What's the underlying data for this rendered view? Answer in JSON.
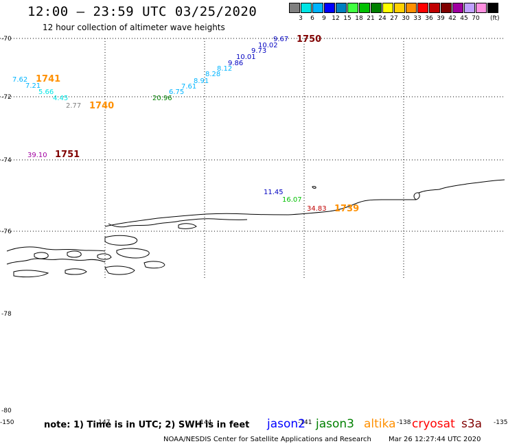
{
  "header": {
    "title": "12:00 – 23:59 UTC 03/25/2020",
    "subtitle": "12 hour collection of altimeter wave heights"
  },
  "color_scale": {
    "unit": "(ft)",
    "items": [
      {
        "label": "",
        "color": "#808080"
      },
      {
        "label": "3",
        "color": "#00e5e5"
      },
      {
        "label": "6",
        "color": "#00b4ff"
      },
      {
        "label": "9",
        "color": "#0000ff"
      },
      {
        "label": "12",
        "color": "#0080c0"
      },
      {
        "label": "15",
        "color": "#40ff40"
      },
      {
        "label": "18",
        "color": "#00c000"
      },
      {
        "label": "21",
        "color": "#008000"
      },
      {
        "label": "24",
        "color": "#ffff00"
      },
      {
        "label": "27",
        "color": "#ffd000"
      },
      {
        "label": "30",
        "color": "#ff9000"
      },
      {
        "label": "33",
        "color": "#ff0000"
      },
      {
        "label": "36",
        "color": "#c00000"
      },
      {
        "label": "39",
        "color": "#800000"
      },
      {
        "label": "42",
        "color": "#a000a0"
      },
      {
        "label": "45",
        "color": "#c0a0ff"
      },
      {
        "label": "70",
        "color": "#ff90e0"
      },
      {
        "label": "",
        "color": "#000000"
      }
    ]
  },
  "axes": {
    "lat_labels": [
      "-70",
      "-72",
      "-74",
      "-76",
      "-78",
      "-80"
    ],
    "lon_labels": [
      "-150",
      "-147",
      "-144",
      "-141",
      "-138",
      "-135"
    ]
  },
  "observations": [
    {
      "text": "9.67",
      "color": "#0000c0"
    },
    {
      "text": "10.02",
      "color": "#0000c0"
    },
    {
      "text": "9.73",
      "color": "#0000c0"
    },
    {
      "text": "10.01",
      "color": "#0000c0"
    },
    {
      "text": "9.86",
      "color": "#0000c0"
    },
    {
      "text": "8.12",
      "color": "#00b4ff"
    },
    {
      "text": "8.28",
      "color": "#00b4ff"
    },
    {
      "text": "8.91",
      "color": "#00b4ff"
    },
    {
      "text": "7.61",
      "color": "#00b4ff"
    },
    {
      "text": "6.75",
      "color": "#00b4ff"
    },
    {
      "text": "20.96",
      "color": "#008000"
    },
    {
      "text": "7.62",
      "color": "#00b4ff"
    },
    {
      "text": "7.21",
      "color": "#00b4ff"
    },
    {
      "text": "5.66",
      "color": "#00e5e5"
    },
    {
      "text": "4.45",
      "color": "#00e5e5"
    },
    {
      "text": "2.77",
      "color": "#808080"
    },
    {
      "text": "39.10",
      "color": "#a000a0"
    },
    {
      "text": "11.45",
      "color": "#0000c0"
    },
    {
      "text": "16.07",
      "color": "#00c000"
    },
    {
      "text": "34.83",
      "color": "#c00000"
    }
  ],
  "time_labels": [
    {
      "text": "1750",
      "color": "#800000"
    },
    {
      "text": "1741",
      "color": "#ff9000"
    },
    {
      "text": "1740",
      "color": "#ff9000"
    },
    {
      "text": "1751",
      "color": "#800000"
    },
    {
      "text": "1739",
      "color": "#ff9000"
    }
  ],
  "footer": {
    "note": "note:  1) Time is in UTC;  2) SWH is in feet",
    "legend": [
      {
        "label": "jason2",
        "color": "#0000ff"
      },
      {
        "label": "jason3",
        "color": "#008000"
      },
      {
        "label": "altika",
        "color": "#ff9000"
      },
      {
        "label": "cryosat",
        "color": "#ff0000"
      },
      {
        "label": "s3a",
        "color": "#800000"
      }
    ],
    "credit": "NOAA/NESDIS Center for Satellite Applications and Research",
    "timestamp": "Mar 26 12:27:44 UTC 2020"
  }
}
